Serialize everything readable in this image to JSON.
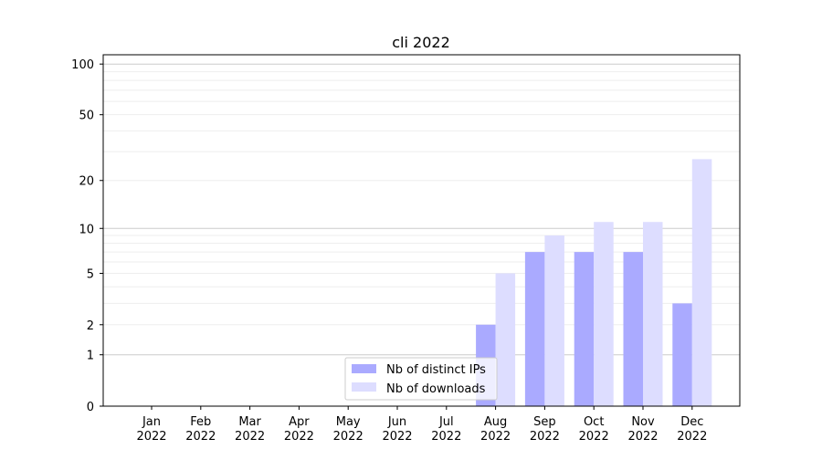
{
  "chart_data": {
    "type": "bar",
    "title": "cli 2022",
    "xlabel": "",
    "ylabel": "",
    "yscale": "log10(1+y)",
    "ylim": [
      0,
      113
    ],
    "yticks": [
      0,
      1,
      2,
      5,
      10,
      20,
      50,
      100
    ],
    "grid": "horizontal, major and minor",
    "legend_placement": "lower center",
    "categories": [
      [
        "Jan",
        "2022"
      ],
      [
        "Feb",
        "2022"
      ],
      [
        "Mar",
        "2022"
      ],
      [
        "Apr",
        "2022"
      ],
      [
        "May",
        "2022"
      ],
      [
        "Jun",
        "2022"
      ],
      [
        "Jul",
        "2022"
      ],
      [
        "Aug",
        "2022"
      ],
      [
        "Sep",
        "2022"
      ],
      [
        "Oct",
        "2022"
      ],
      [
        "Nov",
        "2022"
      ],
      [
        "Dec",
        "2022"
      ]
    ],
    "series": [
      {
        "name": "Nb of distinct IPs",
        "color": "#aaaaff",
        "values": [
          0,
          0,
          0,
          0,
          0,
          0,
          0,
          2,
          7,
          7,
          7,
          3
        ]
      },
      {
        "name": "Nb of downloads",
        "color": "#ddddff",
        "values": [
          0,
          0,
          0,
          0,
          0,
          0,
          0,
          5,
          9,
          11,
          11,
          27
        ]
      }
    ]
  }
}
